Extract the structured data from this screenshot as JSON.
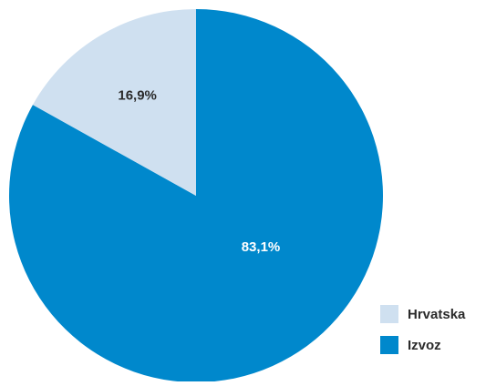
{
  "chart_data": {
    "type": "pie",
    "start_angle_deg": 0,
    "direction": "clockwise",
    "slices": [
      {
        "name": "Izvoz",
        "value": 83.1,
        "label": "83,1%",
        "color": "#0088cc",
        "label_color": "#ffffff"
      },
      {
        "name": "Hrvatska",
        "value": 16.9,
        "label": "16,9%",
        "color": "#cfe0f0",
        "label_color": "#2b2b2b"
      }
    ],
    "legend_position": "bottom-right",
    "legend": [
      {
        "label": "Hrvatska",
        "color": "#cfe0f0"
      },
      {
        "label": "Izvoz",
        "color": "#0088cc"
      }
    ]
  }
}
